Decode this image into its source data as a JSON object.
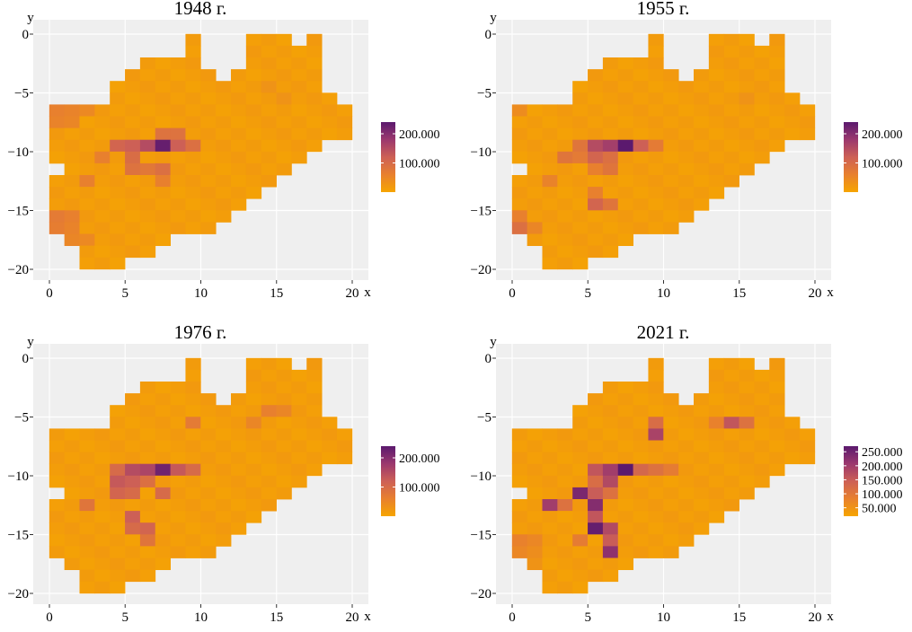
{
  "chart_data": [
    {
      "type": "heatmap",
      "title": "1948 г.",
      "xlabel": "x",
      "ylabel": "y",
      "xlim": [
        0,
        20
      ],
      "ylim": [
        -20,
        0
      ],
      "xticks": [
        0,
        5,
        10,
        15,
        20
      ],
      "yticks": [
        0,
        -5,
        -10,
        -15,
        -20
      ],
      "legend": {
        "position": "right",
        "ticks": [
          200000,
          100000
        ],
        "tick_labels": [
          "200.000",
          "100.000"
        ],
        "range": [
          0,
          240000
        ]
      },
      "hotspots": [
        {
          "x": 7,
          "y": -9,
          "value": 230000
        },
        {
          "x": 6,
          "y": -9,
          "value": 150000
        },
        {
          "x": 5,
          "y": -9,
          "value": 120000
        },
        {
          "x": 8,
          "y": -9,
          "value": 120000
        },
        {
          "x": 4,
          "y": -9,
          "value": 110000
        },
        {
          "x": 5,
          "y": -10,
          "value": 95000
        },
        {
          "x": 7,
          "y": -8,
          "value": 85000
        },
        {
          "x": 8,
          "y": -8,
          "value": 85000
        },
        {
          "x": 9,
          "y": -9,
          "value": 90000
        },
        {
          "x": 5,
          "y": -11,
          "value": 85000
        },
        {
          "x": 7,
          "y": -11,
          "value": 90000
        },
        {
          "x": 6,
          "y": -11,
          "value": 75000
        },
        {
          "x": 7,
          "y": -12,
          "value": 60000
        },
        {
          "x": 3,
          "y": -10,
          "value": 60000
        },
        {
          "x": 2,
          "y": -12,
          "value": 60000
        },
        {
          "x": 0,
          "y": -6,
          "value": 60000
        },
        {
          "x": 0,
          "y": -7,
          "value": 55000
        },
        {
          "x": 1,
          "y": -6,
          "value": 55000
        },
        {
          "x": 1,
          "y": -7,
          "value": 50000
        },
        {
          "x": 2,
          "y": -6,
          "value": 45000
        },
        {
          "x": 0,
          "y": -15,
          "value": 70000
        },
        {
          "x": 0,
          "y": -16,
          "value": 65000
        },
        {
          "x": 1,
          "y": -15,
          "value": 60000
        },
        {
          "x": 1,
          "y": -16,
          "value": 55000
        },
        {
          "x": 1,
          "y": -17,
          "value": 50000
        },
        {
          "x": 2,
          "y": -17,
          "value": 45000
        },
        {
          "x": 14,
          "y": -4,
          "value": 30000
        },
        {
          "x": 15,
          "y": -5,
          "value": 30000
        }
      ]
    },
    {
      "type": "heatmap",
      "title": "1955 г.",
      "xlabel": "x",
      "ylabel": "y",
      "xlim": [
        0,
        20
      ],
      "ylim": [
        -20,
        0
      ],
      "xticks": [
        0,
        5,
        10,
        15,
        20
      ],
      "yticks": [
        0,
        -5,
        -10,
        -15,
        -20
      ],
      "legend": {
        "position": "right",
        "ticks": [
          200000,
          100000
        ],
        "tick_labels": [
          "200.000",
          "100.000"
        ],
        "range": [
          0,
          240000
        ]
      },
      "hotspots": [
        {
          "x": 7,
          "y": -9,
          "value": 240000
        },
        {
          "x": 6,
          "y": -9,
          "value": 170000
        },
        {
          "x": 5,
          "y": -9,
          "value": 150000
        },
        {
          "x": 8,
          "y": -9,
          "value": 120000
        },
        {
          "x": 4,
          "y": -9,
          "value": 80000
        },
        {
          "x": 5,
          "y": -10,
          "value": 110000
        },
        {
          "x": 6,
          "y": -10,
          "value": 90000
        },
        {
          "x": 3,
          "y": -10,
          "value": 80000
        },
        {
          "x": 4,
          "y": -10,
          "value": 70000
        },
        {
          "x": 9,
          "y": -9,
          "value": 70000
        },
        {
          "x": 6,
          "y": -11,
          "value": 80000
        },
        {
          "x": 5,
          "y": -11,
          "value": 60000
        },
        {
          "x": 5,
          "y": -14,
          "value": 110000
        },
        {
          "x": 6,
          "y": -14,
          "value": 80000
        },
        {
          "x": 5,
          "y": -13,
          "value": 60000
        },
        {
          "x": 2,
          "y": -12,
          "value": 55000
        },
        {
          "x": 0,
          "y": -16,
          "value": 90000
        },
        {
          "x": 0,
          "y": -15,
          "value": 60000
        },
        {
          "x": 1,
          "y": -16,
          "value": 50000
        },
        {
          "x": 0,
          "y": -6,
          "value": 40000
        },
        {
          "x": 15,
          "y": -5,
          "value": 30000
        }
      ]
    },
    {
      "type": "heatmap",
      "title": "1976 г.",
      "xlabel": "x",
      "ylabel": "y",
      "xlim": [
        0,
        20
      ],
      "ylim": [
        -20,
        0
      ],
      "xticks": [
        0,
        5,
        10,
        15,
        20
      ],
      "yticks": [
        0,
        -5,
        -10,
        -15,
        -20
      ],
      "legend": {
        "position": "right",
        "ticks": [
          200000,
          100000
        ],
        "tick_labels": [
          "200.000",
          "100.000"
        ],
        "range": [
          0,
          240000
        ]
      },
      "hotspots": [
        {
          "x": 7,
          "y": -9,
          "value": 220000
        },
        {
          "x": 6,
          "y": -9,
          "value": 160000
        },
        {
          "x": 5,
          "y": -9,
          "value": 150000
        },
        {
          "x": 8,
          "y": -9,
          "value": 130000
        },
        {
          "x": 4,
          "y": -9,
          "value": 100000
        },
        {
          "x": 9,
          "y": -9,
          "value": 100000
        },
        {
          "x": 4,
          "y": -10,
          "value": 130000
        },
        {
          "x": 5,
          "y": -10,
          "value": 120000
        },
        {
          "x": 6,
          "y": -10,
          "value": 90000
        },
        {
          "x": 4,
          "y": -11,
          "value": 110000
        },
        {
          "x": 5,
          "y": -11,
          "value": 100000
        },
        {
          "x": 7,
          "y": -11,
          "value": 100000
        },
        {
          "x": 5,
          "y": -13,
          "value": 120000
        },
        {
          "x": 5,
          "y": -14,
          "value": 100000
        },
        {
          "x": 6,
          "y": -14,
          "value": 110000
        },
        {
          "x": 6,
          "y": -15,
          "value": 80000
        },
        {
          "x": 2,
          "y": -12,
          "value": 80000
        },
        {
          "x": 9,
          "y": -5,
          "value": 70000
        },
        {
          "x": 14,
          "y": -4,
          "value": 60000
        },
        {
          "x": 15,
          "y": -4,
          "value": 50000
        },
        {
          "x": 13,
          "y": -5,
          "value": 50000
        }
      ]
    },
    {
      "type": "heatmap",
      "title": "2021 г.",
      "xlabel": "x",
      "ylabel": "y",
      "xlim": [
        0,
        20
      ],
      "ylim": [
        -20,
        0
      ],
      "xticks": [
        0,
        5,
        10,
        15,
        20
      ],
      "yticks": [
        0,
        -5,
        -10,
        -15,
        -20
      ],
      "legend": {
        "position": "right",
        "ticks": [
          250000,
          200000,
          150000,
          100000,
          50000
        ],
        "tick_labels": [
          "250.000",
          "200.000",
          "150.000",
          "100.000",
          "50.000"
        ],
        "range": [
          20000,
          270000
        ]
      },
      "hotspots": [
        {
          "x": 7,
          "y": -9,
          "value": 270000
        },
        {
          "x": 6,
          "y": -9,
          "value": 200000
        },
        {
          "x": 5,
          "y": -9,
          "value": 160000
        },
        {
          "x": 8,
          "y": -9,
          "value": 130000
        },
        {
          "x": 6,
          "y": -10,
          "value": 180000
        },
        {
          "x": 5,
          "y": -10,
          "value": 120000
        },
        {
          "x": 4,
          "y": -11,
          "value": 240000
        },
        {
          "x": 5,
          "y": -11,
          "value": 150000
        },
        {
          "x": 6,
          "y": -11,
          "value": 110000
        },
        {
          "x": 3,
          "y": -12,
          "value": 110000
        },
        {
          "x": 2,
          "y": -12,
          "value": 200000
        },
        {
          "x": 5,
          "y": -12,
          "value": 230000
        },
        {
          "x": 5,
          "y": -13,
          "value": 160000
        },
        {
          "x": 5,
          "y": -14,
          "value": 260000
        },
        {
          "x": 6,
          "y": -14,
          "value": 180000
        },
        {
          "x": 6,
          "y": -15,
          "value": 150000
        },
        {
          "x": 6,
          "y": -16,
          "value": 220000
        },
        {
          "x": 4,
          "y": -15,
          "value": 90000
        },
        {
          "x": 9,
          "y": -6,
          "value": 190000
        },
        {
          "x": 9,
          "y": -5,
          "value": 120000
        },
        {
          "x": 14,
          "y": -5,
          "value": 160000
        },
        {
          "x": 15,
          "y": -5,
          "value": 110000
        },
        {
          "x": 13,
          "y": -5,
          "value": 80000
        },
        {
          "x": 9,
          "y": -9,
          "value": 110000
        },
        {
          "x": 10,
          "y": -9,
          "value": 90000
        },
        {
          "x": 0,
          "y": -15,
          "value": 80000
        },
        {
          "x": 1,
          "y": -15,
          "value": 70000
        },
        {
          "x": 0,
          "y": -16,
          "value": 70000
        },
        {
          "x": 1,
          "y": -16,
          "value": 60000
        },
        {
          "x": 1,
          "y": -17,
          "value": 50000
        }
      ]
    }
  ]
}
